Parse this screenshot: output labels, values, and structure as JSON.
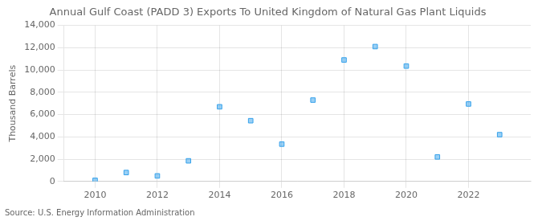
{
  "chart_data": {
    "type": "scatter",
    "title": "Annual Gulf Coast (PADD 3) Exports To United Kingdom of Natural Gas Plant Liquids",
    "ylabel": "Thousand Barrels",
    "annotations": [
      "Source: U.S. Energy Information Administration"
    ],
    "x": [
      2010,
      2011,
      2012,
      2013,
      2014,
      2015,
      2016,
      2017,
      2018,
      2019,
      2020,
      2021,
      2022,
      2023
    ],
    "values": [
      100,
      800,
      500,
      1850,
      6700,
      5450,
      3350,
      7300,
      10900,
      12100,
      10350,
      2200,
      6950,
      4200
    ],
    "marker": "square",
    "xlim": [
      2009,
      2024
    ],
    "xticks": [
      2010,
      2012,
      2014,
      2016,
      2018,
      2020,
      2022
    ],
    "ylim": [
      0,
      14000
    ],
    "yticks": [
      0,
      {
        "value": 2000,
        "label": "2,000"
      },
      {
        "value": 4000,
        "label": "4,000"
      },
      {
        "value": 6000,
        "label": "6,000"
      },
      {
        "value": 8000,
        "label": "8,000"
      },
      {
        "value": 10000,
        "label": "10,000"
      },
      {
        "value": 12000,
        "label": "12,000"
      },
      {
        "value": 14000,
        "label": "14,000"
      }
    ],
    "grid": true
  }
}
